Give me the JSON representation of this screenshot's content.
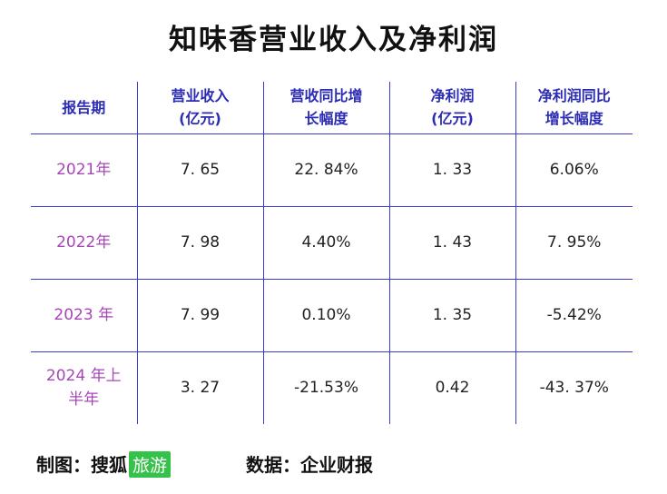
{
  "title": "知味香营业收入及净利润",
  "table": {
    "headers": [
      "报告期",
      "营业收入\n(亿元)",
      "营收同比增\n长幅度",
      "净利润\n(亿元)",
      "净利润同比\n增长幅度"
    ],
    "rows": [
      {
        "period": "2021年",
        "revenue": "7. 65",
        "revenue_growth": "22. 84%",
        "net_profit": "1. 33",
        "profit_growth": "6.06%"
      },
      {
        "period": "2022年",
        "revenue": "7. 98",
        "revenue_growth": "4.40%",
        "net_profit": "1. 43",
        "profit_growth": "7. 95%"
      },
      {
        "period": "2023 年",
        "revenue": "7. 99",
        "revenue_growth": "0.10%",
        "net_profit": "1. 35",
        "profit_growth": "-5.42%"
      },
      {
        "period": "2024 年上\n半年",
        "revenue": "3. 27",
        "revenue_growth": "-21.53%",
        "net_profit": "0.42",
        "profit_growth": "-43. 37%"
      }
    ]
  },
  "footer": {
    "credit_prefix": "制图：搜狐",
    "credit_badge": "旅游",
    "source": "数据：企业财报"
  },
  "colors": {
    "grid": "#3b3bcc",
    "header_text": "#2b2bb3",
    "period_text": "#a845b8",
    "badge_bg": "#36c24a"
  }
}
